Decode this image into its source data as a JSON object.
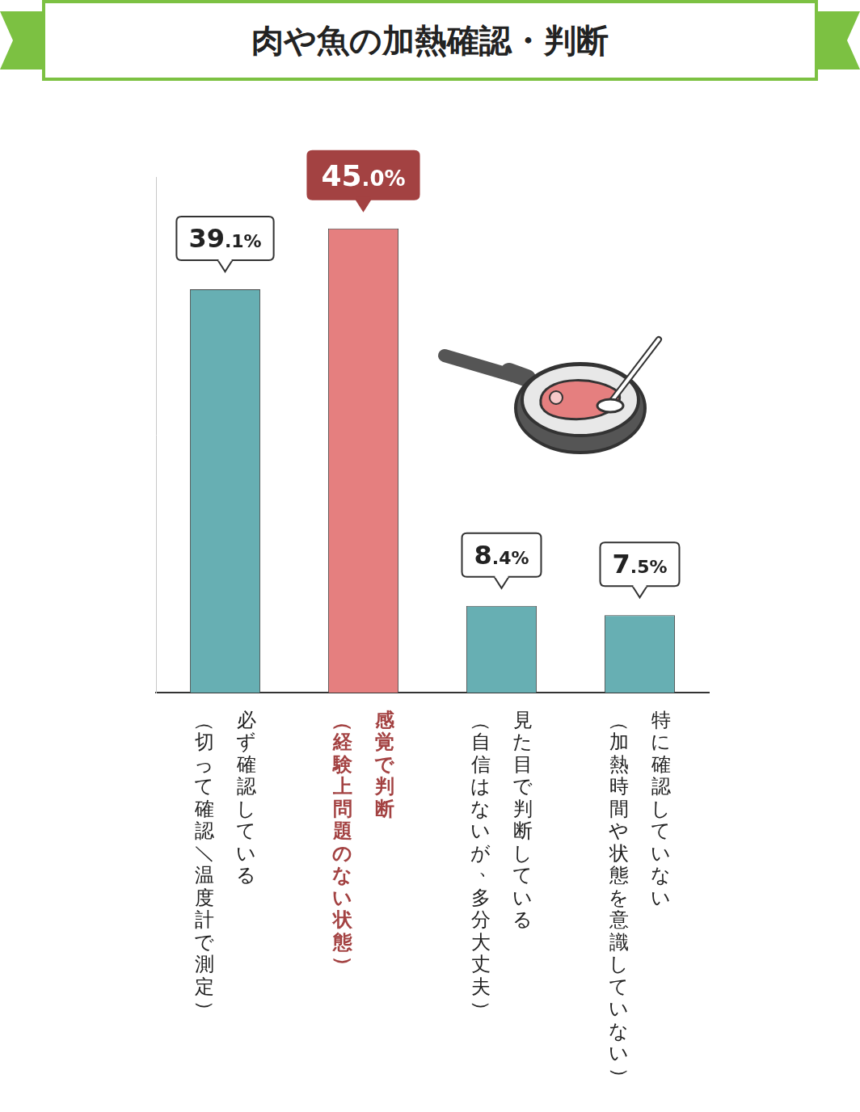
{
  "chart_data": {
    "type": "bar",
    "title": "肉や魚の加熱確認・判断",
    "categories": [
      [
        "必ず確認している",
        "（切って確認／温度計で測定）"
      ],
      [
        "感覚で判断",
        "（経験上問題のない状態）"
      ],
      [
        "見た目で判断している",
        "（自信はないが、多分大丈夫）"
      ],
      [
        "特に確認していない",
        "（加熱時間や状態を意識していない）"
      ]
    ],
    "values": [
      39.1,
      45.0,
      8.4,
      7.5
    ],
    "value_labels": [
      "39.1%",
      "45.0%",
      "8.4%",
      "7.5%"
    ],
    "colors": [
      "#67afb3",
      "#e57f7f",
      "#67afb3",
      "#67afb3"
    ],
    "ylim": [
      0,
      50
    ],
    "grid": false,
    "data_labels": true,
    "tick_labels": "x"
  }
}
